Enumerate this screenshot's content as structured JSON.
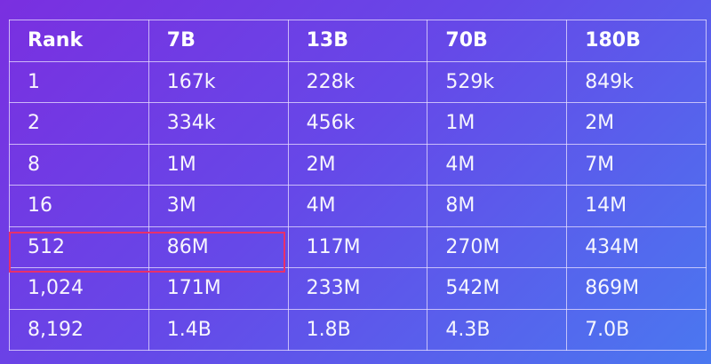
{
  "table": {
    "header": [
      "Rank",
      "7B",
      "13B",
      "70B",
      "180B"
    ],
    "rows": [
      [
        "1",
        "167k",
        "228k",
        "529k",
        "849k"
      ],
      [
        "2",
        "334k",
        "456k",
        "1M",
        "2M"
      ],
      [
        "8",
        "1M",
        "2M",
        "4M",
        "7M"
      ],
      [
        "16",
        "3M",
        "4M",
        "8M",
        "14M"
      ],
      [
        "512",
        "86M",
        "117M",
        "270M",
        "434M"
      ],
      [
        "1,024",
        "171M",
        "233M",
        "542M",
        "869M"
      ],
      [
        "8,192",
        "1.4B",
        "1.8B",
        "4.3B",
        "7.0B"
      ]
    ]
  }
}
